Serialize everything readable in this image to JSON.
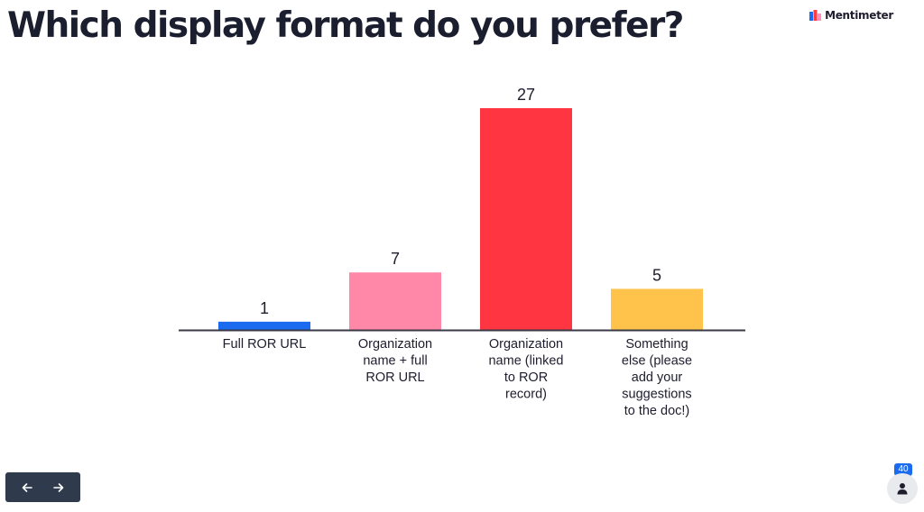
{
  "slide": {
    "question": "Which display format do you prefer?"
  },
  "brand": {
    "name": "Mentimeter",
    "logo_icon": "mentimeter-logo-icon",
    "logo_colors": [
      "#1b6bf0",
      "#ff3c41",
      "#ff8fb4"
    ]
  },
  "chart_data": {
    "type": "bar",
    "title": "",
    "xlabel": "",
    "ylabel": "",
    "categories": [
      [
        "Full ROR URL"
      ],
      [
        "Organization",
        "name + full",
        "ROR URL"
      ],
      [
        "Organization",
        "name (linked",
        "to ROR",
        "record)"
      ],
      [
        "Something",
        "else (please",
        "add your",
        "suggestions",
        "to the doc!)"
      ]
    ],
    "values": [
      1,
      7,
      27,
      5
    ],
    "colors": [
      "#1b6bf0",
      "#ff87a8",
      "#ff3541",
      "#ffc34b"
    ],
    "ylim": [
      0,
      27
    ],
    "grid": false,
    "legend": "none"
  },
  "navigation": {
    "prev_icon": "arrow-left-icon",
    "next_icon": "arrow-right-icon"
  },
  "participants": {
    "count": "40",
    "icon": "person-icon"
  }
}
